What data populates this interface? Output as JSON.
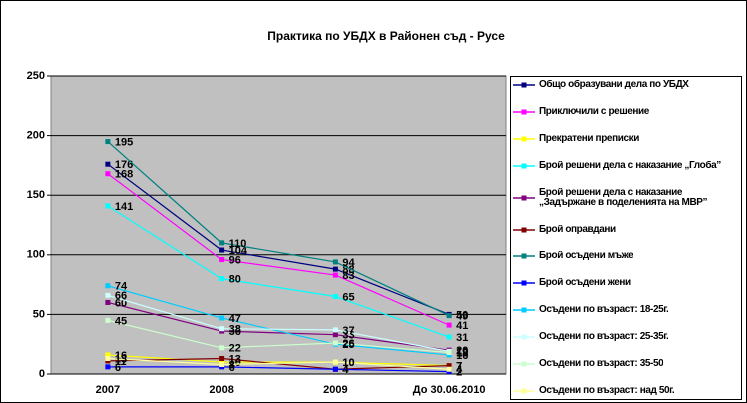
{
  "chart_data": {
    "type": "line",
    "title": "Практика по УБДХ в Районен съд - Русе",
    "categories": [
      "2007",
      "2008",
      "2009",
      "До 30.06.2010"
    ],
    "ylim": [
      0,
      250
    ],
    "yticks": [
      0,
      50,
      100,
      150,
      200,
      250
    ],
    "grid": true,
    "series": [
      {
        "name": "Общо образувани дела по УБДХ",
        "color": "#000080",
        "values": [
          176,
          104,
          88,
          50
        ]
      },
      {
        "name": "Приключили с решение",
        "color": "#FF00FF",
        "values": [
          168,
          96,
          83,
          41
        ]
      },
      {
        "name": "Прекратени преписки",
        "color": "#FFFF00",
        "values": [
          16,
          10,
          10,
          7
        ]
      },
      {
        "name": "Брой решени дела с наказание „Глоба”",
        "color": "#00FFFF",
        "values": [
          141,
          80,
          65,
          31
        ]
      },
      {
        "name": "Брой решени дела с наказание „Задържане в поделенията на МВР”",
        "color": "#800080",
        "values": [
          60,
          36,
          33,
          20
        ]
      },
      {
        "name": "Брой оправдани",
        "color": "#800000",
        "values": [
          11,
          13,
          4,
          7
        ]
      },
      {
        "name": "Брой осъдени мъже",
        "color": "#008080",
        "values": [
          195,
          110,
          94,
          49
        ]
      },
      {
        "name": "Брой осъдени жени",
        "color": "#0000FF",
        "values": [
          6,
          6,
          4,
          2
        ]
      },
      {
        "name": "Осъдени по възраст: 18-25г.",
        "color": "#00CCFF",
        "values": [
          74,
          47,
          25,
          16
        ]
      },
      {
        "name": "Осъдени по възраст: 25-35г.",
        "color": "#CCFFFF",
        "values": [
          66,
          38,
          37,
          19
        ]
      },
      {
        "name": "Осъдени по възраст: 35-50",
        "color": "#CCFFCC",
        "values": [
          45,
          22,
          26,
          18
        ]
      },
      {
        "name": "Осъдени по възраст: над 50г.",
        "color": "#FFFF99",
        "values": [
          13,
          8,
          10,
          4
        ]
      }
    ]
  }
}
